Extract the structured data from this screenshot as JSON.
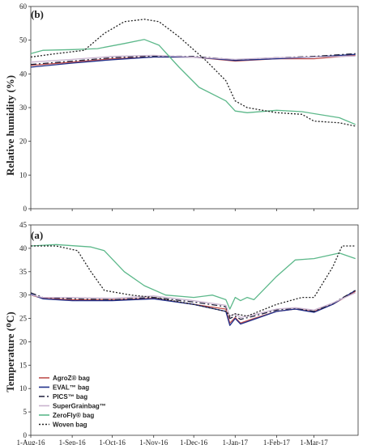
{
  "chart_data": [
    {
      "type": "line",
      "panel_label": "(b)",
      "ylabel": "Relative humidity (%)",
      "ylim": [
        0,
        60
      ],
      "yticks": [
        0,
        10,
        20,
        30,
        40,
        50,
        60
      ],
      "x_ticks": [
        "1-Aug-16",
        "1-Sep-16",
        "1-Oct-16",
        "1-Nov-16",
        "1-Dec-16",
        "1-Jan-17",
        "1-Feb-17",
        "1-Mar-17"
      ],
      "series": [
        {
          "name": "AgroZ® bag",
          "color": "#c0504d",
          "dash": "",
          "points": [
            [
              "2016-08-01",
              42.5
            ],
            [
              "2016-09-01",
              43.5
            ],
            [
              "2016-10-01",
              44.5
            ],
            [
              "2016-11-01",
              45
            ],
            [
              "2016-12-01",
              45
            ],
            [
              "2017-01-01",
              43.8
            ],
            [
              "2017-02-01",
              44.5
            ],
            [
              "2017-03-01",
              44.5
            ],
            [
              "2017-04-01",
              45.5
            ]
          ]
        },
        {
          "name": "EVAL™ bag",
          "color": "#1f2f8a",
          "dash": "",
          "points": [
            [
              "2016-08-01",
              42
            ],
            [
              "2016-09-01",
              43.2
            ],
            [
              "2016-10-01",
              44.2
            ],
            [
              "2016-11-01",
              45
            ],
            [
              "2016-12-01",
              45
            ],
            [
              "2017-01-01",
              44
            ],
            [
              "2017-02-01",
              44.5
            ],
            [
              "2017-03-01",
              45
            ],
            [
              "2017-04-01",
              45.8
            ]
          ]
        },
        {
          "name": "PICS™ bag",
          "color": "#1f1f3a",
          "dash": "7,3,2,3",
          "points": [
            [
              "2016-08-01",
              42.8
            ],
            [
              "2016-09-01",
              43.8
            ],
            [
              "2016-10-01",
              44.8
            ],
            [
              "2016-11-01",
              45.3
            ],
            [
              "2016-12-01",
              45.2
            ],
            [
              "2017-01-01",
              44.2
            ],
            [
              "2017-02-01",
              44.8
            ],
            [
              "2017-03-01",
              45.2
            ],
            [
              "2017-04-01",
              46
            ]
          ]
        },
        {
          "name": "SuperGrainbag™",
          "color": "#c9b3cf",
          "dash": "",
          "points": [
            [
              "2016-08-01",
              43.5
            ],
            [
              "2016-09-01",
              44.3
            ],
            [
              "2016-10-01",
              45.2
            ],
            [
              "2016-11-01",
              45.5
            ],
            [
              "2016-12-01",
              45
            ],
            [
              "2017-01-01",
              44.3
            ],
            [
              "2017-02-01",
              44.8
            ],
            [
              "2017-03-01",
              45
            ],
            [
              "2017-04-01",
              45.3
            ]
          ]
        },
        {
          "name": "ZeroFly® bag",
          "color": "#5cb88a",
          "dash": "",
          "points": [
            [
              "2016-08-01",
              46
            ],
            [
              "2016-08-10",
              47
            ],
            [
              "2016-09-01",
              47.2
            ],
            [
              "2016-09-20",
              47.5
            ],
            [
              "2016-10-10",
              49
            ],
            [
              "2016-10-25",
              50.2
            ],
            [
              "2016-11-05",
              48.5
            ],
            [
              "2016-11-20",
              42
            ],
            [
              "2016-12-05",
              36
            ],
            [
              "2016-12-25",
              32
            ],
            [
              "2017-01-01",
              29
            ],
            [
              "2017-01-10",
              28.5
            ],
            [
              "2017-02-01",
              29.2
            ],
            [
              "2017-02-20",
              28.8
            ],
            [
              "2017-03-20",
              27
            ],
            [
              "2017-04-01",
              25
            ]
          ]
        },
        {
          "name": "Woven bag",
          "color": "#222222",
          "dash": "2,2",
          "points": [
            [
              "2016-08-01",
              45
            ],
            [
              "2016-08-20",
              46
            ],
            [
              "2016-09-10",
              47
            ],
            [
              "2016-09-25",
              52
            ],
            [
              "2016-10-10",
              55.5
            ],
            [
              "2016-10-25",
              56.2
            ],
            [
              "2016-11-05",
              55.5
            ],
            [
              "2016-11-20",
              51
            ],
            [
              "2016-12-10",
              44
            ],
            [
              "2016-12-25",
              38
            ],
            [
              "2017-01-01",
              32
            ],
            [
              "2017-01-10",
              30
            ],
            [
              "2017-02-01",
              28.5
            ],
            [
              "2017-02-20",
              28
            ],
            [
              "2017-03-01",
              26
            ],
            [
              "2017-03-20",
              25.5
            ],
            [
              "2017-04-01",
              24.5
            ]
          ]
        }
      ]
    },
    {
      "type": "line",
      "panel_label": "(a)",
      "ylabel": "Temperature (ᴼC)",
      "ylim": [
        0,
        45
      ],
      "yticks": [
        0,
        5,
        10,
        15,
        20,
        25,
        30,
        35,
        40,
        45
      ],
      "x_ticks": [
        "1-Aug-16",
        "1-Sep-16",
        "1-Oct-16",
        "1-Nov-16",
        "1-Dec-16",
        "1-Jan-17",
        "1-Feb-17",
        "1-Mar-17"
      ],
      "legend": "bottom-left",
      "series": [
        {
          "name": "AgroZ® bag",
          "color": "#c0504d",
          "dash": "",
          "points": [
            [
              "2016-08-01",
              30
            ],
            [
              "2016-08-10",
              29.3
            ],
            [
              "2016-09-01",
              29
            ],
            [
              "2016-10-01",
              29
            ],
            [
              "2016-11-01",
              29.3
            ],
            [
              "2016-12-01",
              28
            ],
            [
              "2016-12-25",
              27
            ],
            [
              "2016-12-28",
              24
            ],
            [
              "2017-01-01",
              25.2
            ],
            [
              "2017-01-05",
              24
            ],
            [
              "2017-01-15",
              25
            ],
            [
              "2017-02-01",
              26.5
            ],
            [
              "2017-02-15",
              27
            ],
            [
              "2017-03-01",
              26.5
            ],
            [
              "2017-03-15",
              28
            ],
            [
              "2017-04-01",
              30.8
            ]
          ]
        },
        {
          "name": "EVAL™ bag",
          "color": "#1f2f8a",
          "dash": "",
          "points": [
            [
              "2016-08-01",
              30.2
            ],
            [
              "2016-08-10",
              29.2
            ],
            [
              "2016-09-01",
              28.8
            ],
            [
              "2016-10-01",
              28.8
            ],
            [
              "2016-11-01",
              29.2
            ],
            [
              "2016-12-01",
              28
            ],
            [
              "2016-12-25",
              26.5
            ],
            [
              "2016-12-28",
              23.5
            ],
            [
              "2017-01-01",
              25
            ],
            [
              "2017-01-05",
              23.8
            ],
            [
              "2017-01-15",
              24.8
            ],
            [
              "2017-02-01",
              26.5
            ],
            [
              "2017-02-15",
              27
            ],
            [
              "2017-03-01",
              26.3
            ],
            [
              "2017-03-15",
              28
            ],
            [
              "2017-04-01",
              31
            ]
          ]
        },
        {
          "name": "PICS™ bag",
          "color": "#1f1f3a",
          "dash": "7,3,2,3",
          "points": [
            [
              "2016-08-01",
              30.5
            ],
            [
              "2016-08-10",
              29.5
            ],
            [
              "2016-09-01",
              29.2
            ],
            [
              "2016-10-01",
              29
            ],
            [
              "2016-11-01",
              29.5
            ],
            [
              "2016-12-01",
              28.5
            ],
            [
              "2016-12-25",
              27.5
            ],
            [
              "2016-12-28",
              25
            ],
            [
              "2017-01-01",
              25.5
            ],
            [
              "2017-01-05",
              24.8
            ],
            [
              "2017-01-15",
              25.5
            ],
            [
              "2017-02-01",
              26.8
            ],
            [
              "2017-02-15",
              27.2
            ],
            [
              "2017-03-01",
              26.5
            ],
            [
              "2017-03-15",
              28.2
            ],
            [
              "2017-04-01",
              31
            ]
          ]
        },
        {
          "name": "SuperGrainbag™",
          "color": "#c9b3cf",
          "dash": "",
          "points": [
            [
              "2016-08-01",
              30
            ],
            [
              "2016-08-10",
              29.5
            ],
            [
              "2016-09-01",
              29.5
            ],
            [
              "2016-10-01",
              29.3
            ],
            [
              "2016-11-01",
              29.8
            ],
            [
              "2016-12-01",
              28.8
            ],
            [
              "2016-12-25",
              27.8
            ],
            [
              "2016-12-28",
              25.5
            ],
            [
              "2017-01-01",
              26
            ],
            [
              "2017-01-05",
              25.2
            ],
            [
              "2017-01-15",
              25.8
            ],
            [
              "2017-02-01",
              27
            ],
            [
              "2017-02-15",
              27.3
            ],
            [
              "2017-03-01",
              26.8
            ],
            [
              "2017-03-15",
              28.3
            ],
            [
              "2017-04-01",
              30.5
            ]
          ]
        },
        {
          "name": "ZeroFly® bag",
          "color": "#5cb88a",
          "dash": "",
          "points": [
            [
              "2016-08-01",
              40.5
            ],
            [
              "2016-08-20",
              40.8
            ],
            [
              "2016-09-15",
              40.3
            ],
            [
              "2016-09-25",
              39.5
            ],
            [
              "2016-10-10",
              35
            ],
            [
              "2016-10-25",
              32
            ],
            [
              "2016-11-10",
              30
            ],
            [
              "2016-12-01",
              29.5
            ],
            [
              "2016-12-15",
              30
            ],
            [
              "2016-12-25",
              29
            ],
            [
              "2016-12-28",
              27
            ],
            [
              "2017-01-01",
              29.5
            ],
            [
              "2017-01-05",
              28.8
            ],
            [
              "2017-01-10",
              29.5
            ],
            [
              "2017-01-15",
              29
            ],
            [
              "2017-02-01",
              34
            ],
            [
              "2017-02-15",
              37.5
            ],
            [
              "2017-03-01",
              37.8
            ],
            [
              "2017-03-20",
              39
            ],
            [
              "2017-04-01",
              37.8
            ]
          ]
        },
        {
          "name": "Woven bag",
          "color": "#222222",
          "dash": "2,2",
          "points": [
            [
              "2016-08-01",
              40.5
            ],
            [
              "2016-08-20",
              40.5
            ],
            [
              "2016-09-05",
              39.5
            ],
            [
              "2016-09-15",
              35
            ],
            [
              "2016-09-25",
              31
            ],
            [
              "2016-10-15",
              30
            ],
            [
              "2016-11-01",
              29.5
            ],
            [
              "2016-12-01",
              28
            ],
            [
              "2016-12-25",
              26.5
            ],
            [
              "2016-12-28",
              25.5
            ],
            [
              "2017-01-01",
              26
            ],
            [
              "2017-01-10",
              25.5
            ],
            [
              "2017-02-01",
              28
            ],
            [
              "2017-02-20",
              29.5
            ],
            [
              "2017-03-01",
              29.5
            ],
            [
              "2017-03-15",
              36
            ],
            [
              "2017-03-22",
              40.5
            ],
            [
              "2017-04-01",
              40.5
            ]
          ]
        }
      ]
    }
  ]
}
